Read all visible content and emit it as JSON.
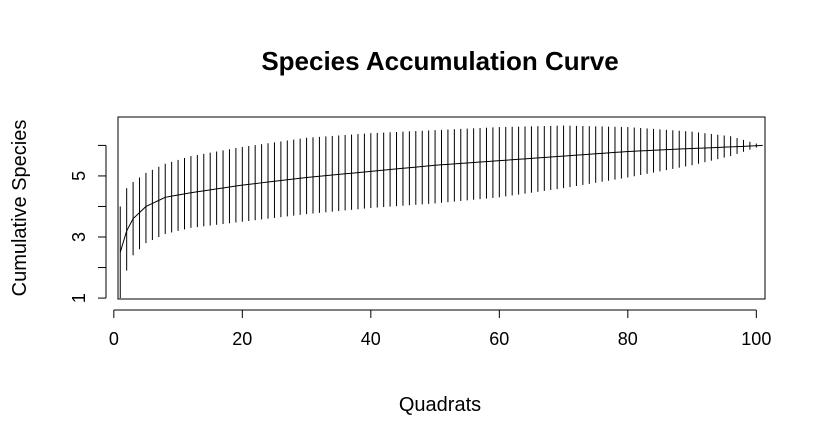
{
  "chart_data": {
    "type": "line",
    "title": "Species Accumulation Curve",
    "xlabel": "Quadrats",
    "ylabel": "Cumulative Species",
    "xlim": [
      1,
      101
    ],
    "ylim": [
      0.97,
      6.93
    ],
    "x_ticks": [
      0,
      20,
      40,
      60,
      80,
      100
    ],
    "y_ticks": [
      1,
      2,
      3,
      4,
      5,
      6
    ],
    "y_tick_labels": [
      "1",
      "",
      "3",
      "",
      "5",
      ""
    ],
    "grid": false,
    "legend": "none",
    "series": [
      {
        "x_start": 1,
        "x_end": 101,
        "anchors": [
          {
            "x": 1,
            "mean": 2.5,
            "lower": 1.0,
            "upper": 4.0
          },
          {
            "x": 2,
            "mean": 3.2,
            "lower": 1.9,
            "upper": 4.6
          },
          {
            "x": 3,
            "mean": 3.6,
            "lower": 2.4,
            "upper": 4.8
          },
          {
            "x": 5,
            "mean": 4.0,
            "lower": 2.8,
            "upper": 5.1
          },
          {
            "x": 8,
            "mean": 4.3,
            "lower": 3.1,
            "upper": 5.4
          },
          {
            "x": 12,
            "mean": 4.45,
            "lower": 3.3,
            "upper": 5.65
          },
          {
            "x": 20,
            "mean": 4.7,
            "lower": 3.5,
            "upper": 5.95
          },
          {
            "x": 30,
            "mean": 4.95,
            "lower": 3.75,
            "upper": 6.25
          },
          {
            "x": 40,
            "mean": 5.15,
            "lower": 3.95,
            "upper": 6.4
          },
          {
            "x": 50,
            "mean": 5.35,
            "lower": 4.1,
            "upper": 6.5
          },
          {
            "x": 60,
            "mean": 5.5,
            "lower": 4.3,
            "upper": 6.6
          },
          {
            "x": 70,
            "mean": 5.65,
            "lower": 4.6,
            "upper": 6.65
          },
          {
            "x": 80,
            "mean": 5.8,
            "lower": 4.95,
            "upper": 6.6
          },
          {
            "x": 90,
            "mean": 5.9,
            "lower": 5.35,
            "upper": 6.45
          },
          {
            "x": 96,
            "mean": 5.95,
            "lower": 5.65,
            "upper": 6.3
          },
          {
            "x": 101,
            "mean": 6.0,
            "lower": 6.0,
            "upper": 6.0
          }
        ]
      }
    ]
  }
}
